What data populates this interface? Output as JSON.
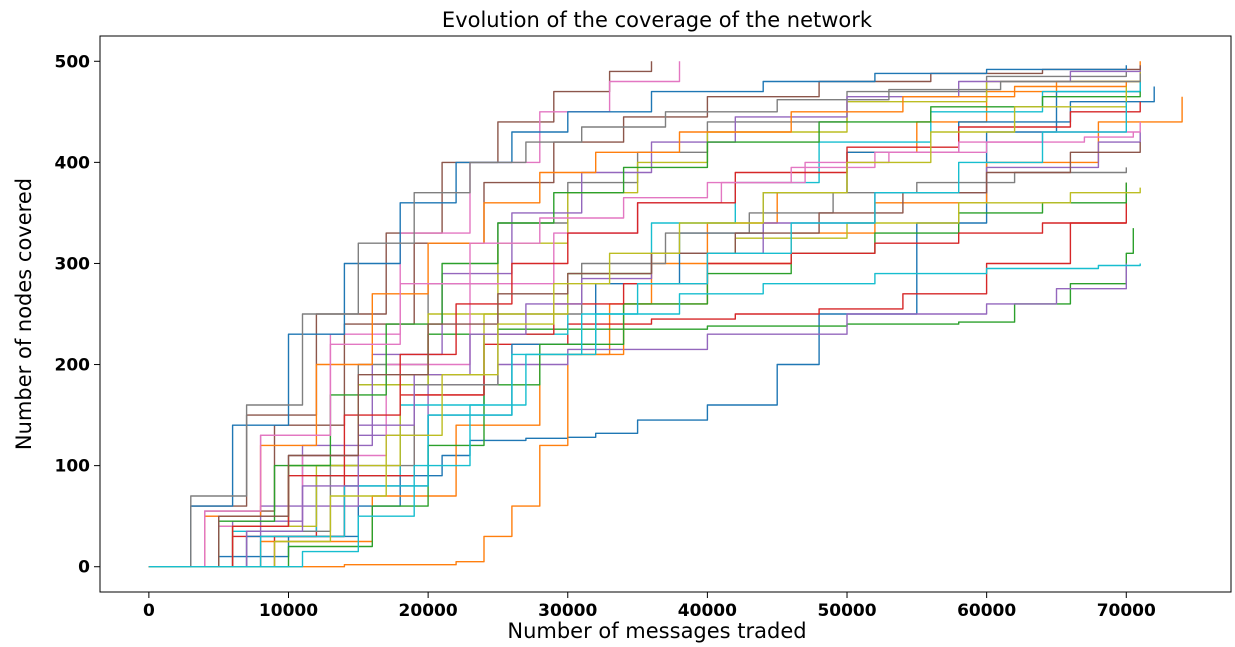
{
  "chart_data": {
    "type": "line",
    "title": "Evolution of the coverage of the network",
    "xlabel": "Number of messages traded",
    "ylabel": "Number of nodes covered",
    "xlim": [
      -3500,
      77500
    ],
    "ylim": [
      -25,
      525
    ],
    "x_ticks": [
      0,
      10000,
      20000,
      30000,
      40000,
      50000,
      60000,
      70000
    ],
    "y_ticks": [
      0,
      100,
      200,
      300,
      400,
      500
    ],
    "grid": false,
    "legend": "none",
    "colors": [
      "#1f77b4",
      "#ff7f0e",
      "#2ca02c",
      "#d62728",
      "#9467bd",
      "#8c564b",
      "#e377c2",
      "#7f7f7f",
      "#bcbd22",
      "#17becf"
    ],
    "series": [
      {
        "x": [
          0,
          5000,
          10000,
          15000,
          18000,
          21000,
          23000,
          27000,
          30000,
          32000,
          35000,
          40000,
          45000,
          48000,
          55000,
          60000,
          65000,
          71000
        ],
        "y": [
          0,
          10,
          30,
          60,
          90,
          110,
          125,
          127,
          128,
          132,
          145,
          160,
          200,
          250,
          340,
          430,
          470,
          490
        ]
      },
      {
        "x": [
          0,
          14000,
          20000,
          22000,
          24000,
          26000,
          28000,
          30000,
          33000,
          36000,
          40000,
          45000,
          50000,
          55000,
          60000,
          65000,
          71000
        ],
        "y": [
          0,
          2,
          2,
          5,
          30,
          60,
          120,
          210,
          260,
          300,
          340,
          370,
          410,
          440,
          470,
          480,
          500
        ]
      },
      {
        "x": [
          0,
          5000,
          10000,
          15000,
          20000,
          25000,
          30000,
          40000,
          50000,
          58000,
          62000,
          66000,
          70000,
          70500
        ],
        "y": [
          0,
          40,
          100,
          180,
          230,
          235,
          235,
          238,
          240,
          242,
          260,
          280,
          310,
          335
        ]
      },
      {
        "x": [
          0,
          6000,
          12000,
          18000,
          24000,
          30000,
          36000,
          42000,
          48000,
          54000,
          60000,
          66000,
          70000
        ],
        "y": [
          0,
          30,
          90,
          170,
          220,
          240,
          245,
          250,
          255,
          270,
          300,
          340,
          380
        ]
      },
      {
        "x": [
          0,
          8000,
          15000,
          20000,
          25000,
          30000,
          40000,
          50000,
          60000,
          65000,
          70000
        ],
        "y": [
          0,
          60,
          130,
          180,
          200,
          215,
          230,
          250,
          260,
          275,
          300
        ]
      },
      {
        "x": [
          0,
          3000,
          7000,
          12000,
          17000,
          21000,
          25000,
          29000,
          33000,
          36000
        ],
        "y": [
          0,
          60,
          150,
          250,
          330,
          400,
          440,
          470,
          490,
          500
        ]
      },
      {
        "x": [
          0,
          4000,
          8000,
          13000,
          18000,
          23000,
          28000,
          33000,
          38000
        ],
        "y": [
          0,
          50,
          130,
          230,
          330,
          400,
          450,
          480,
          500
        ]
      },
      {
        "x": [
          0,
          5000,
          10000,
          15000,
          20000,
          25000,
          30000,
          35000,
          40000,
          50000,
          60000,
          70000
        ],
        "y": [
          0,
          50,
          110,
          200,
          280,
          340,
          380,
          410,
          440,
          470,
          485,
          490
        ]
      },
      {
        "x": [
          0,
          5000,
          10000,
          15000,
          20000,
          25000,
          30000,
          35000,
          40000,
          50000,
          60000,
          71000
        ],
        "y": [
          0,
          40,
          100,
          180,
          250,
          320,
          370,
          400,
          430,
          460,
          480,
          495
        ]
      },
      {
        "x": [
          0,
          6000,
          12000,
          18000,
          24000,
          30000,
          36000,
          42000,
          48000,
          56000,
          64000,
          71000
        ],
        "y": [
          0,
          35,
          90,
          160,
          230,
          290,
          340,
          380,
          420,
          450,
          470,
          480
        ]
      },
      {
        "x": [
          0,
          7000,
          14000,
          20000,
          26000,
          32000,
          38000,
          44000,
          50000,
          58000,
          66000,
          72000
        ],
        "y": [
          0,
          30,
          80,
          150,
          220,
          280,
          330,
          370,
          410,
          440,
          460,
          475
        ]
      },
      {
        "x": [
          0,
          8000,
          16000,
          22000,
          28000,
          34000,
          40000,
          46000,
          52000,
          60000,
          68000,
          74000
        ],
        "y": [
          0,
          25,
          70,
          140,
          210,
          260,
          300,
          330,
          360,
          400,
          440,
          465
        ]
      },
      {
        "x": [
          0,
          10000,
          16000,
          20000,
          24000,
          28000,
          34000,
          40000,
          46000,
          52000,
          58000,
          64000,
          70000
        ],
        "y": [
          0,
          20,
          60,
          120,
          180,
          220,
          260,
          290,
          310,
          330,
          350,
          360,
          380
        ]
      },
      {
        "x": [
          0,
          9000,
          14000,
          19000,
          24000,
          29000,
          34000,
          40000,
          46000,
          52000,
          58000,
          64000,
          70000
        ],
        "y": [
          0,
          30,
          90,
          170,
          230,
          260,
          280,
          300,
          310,
          320,
          330,
          340,
          340
        ]
      },
      {
        "x": [
          0,
          6000,
          11000,
          16000,
          21000,
          26000,
          31000,
          36000,
          42000,
          50000,
          58000,
          66000,
          71000
        ],
        "y": [
          0,
          45,
          120,
          210,
          290,
          350,
          390,
          420,
          445,
          465,
          480,
          490,
          495
        ]
      },
      {
        "x": [
          0,
          4000,
          9000,
          14000,
          19000,
          24000,
          29000,
          34000,
          40000,
          48000,
          56000,
          64000,
          71000
        ],
        "y": [
          0,
          55,
          140,
          240,
          320,
          380,
          420,
          445,
          465,
          480,
          488,
          492,
          496
        ]
      },
      {
        "x": [
          0,
          5000,
          11000,
          17000,
          23000,
          29000,
          35000,
          41000,
          47000,
          53000,
          60000,
          67000,
          70500
        ],
        "y": [
          0,
          40,
          110,
          200,
          280,
          330,
          360,
          380,
          400,
          410,
          420,
          425,
          430
        ]
      },
      {
        "x": [
          0,
          7000,
          13000,
          19000,
          25000,
          31000,
          37000,
          43000,
          49000,
          55000,
          62000,
          70000
        ],
        "y": [
          0,
          35,
          100,
          180,
          250,
          300,
          330,
          350,
          370,
          380,
          390,
          395
        ]
      },
      {
        "x": [
          0,
          6000,
          12000,
          18000,
          24000,
          30000,
          36000,
          42000,
          50000,
          58000,
          66000,
          71000
        ],
        "y": [
          0,
          40,
          100,
          190,
          250,
          290,
          310,
          325,
          340,
          360,
          370,
          375
        ]
      },
      {
        "x": [
          0,
          8000,
          14000,
          20000,
          26000,
          32000,
          38000,
          44000,
          52000,
          60000,
          68000,
          71000
        ],
        "y": [
          0,
          30,
          80,
          150,
          210,
          250,
          270,
          280,
          290,
          295,
          298,
          300
        ]
      },
      {
        "x": [
          0,
          3000,
          6000,
          10000,
          14000,
          18000,
          22000,
          26000,
          30000,
          36000,
          44000,
          52000,
          60000,
          70000
        ],
        "y": [
          0,
          60,
          140,
          230,
          300,
          360,
          400,
          430,
          450,
          470,
          480,
          488,
          492,
          496
        ]
      },
      {
        "x": [
          0,
          4000,
          8000,
          12000,
          16000,
          20000,
          24000,
          28000,
          32000,
          38000,
          46000,
          54000,
          62000,
          70000
        ],
        "y": [
          0,
          50,
          120,
          200,
          270,
          320,
          360,
          390,
          410,
          430,
          450,
          465,
          475,
          480
        ]
      },
      {
        "x": [
          0,
          5000,
          9000,
          13000,
          17000,
          21000,
          25000,
          29000,
          34000,
          40000,
          48000,
          56000,
          64000,
          71000
        ],
        "y": [
          0,
          45,
          100,
          170,
          240,
          300,
          340,
          370,
          395,
          420,
          440,
          455,
          465,
          470
        ]
      },
      {
        "x": [
          0,
          6000,
          10000,
          14000,
          18000,
          22000,
          26000,
          30000,
          35000,
          42000,
          50000,
          58000,
          66000,
          71000
        ],
        "y": [
          0,
          40,
          90,
          150,
          210,
          260,
          300,
          330,
          360,
          390,
          415,
          435,
          450,
          460
        ]
      },
      {
        "x": [
          0,
          7000,
          11000,
          15000,
          19000,
          23000,
          27000,
          31000,
          36000,
          44000,
          52000,
          60000,
          68000,
          71000
        ],
        "y": [
          0,
          35,
          80,
          140,
          190,
          230,
          260,
          285,
          310,
          340,
          370,
          395,
          420,
          430
        ]
      },
      {
        "x": [
          0,
          5000,
          10000,
          15000,
          20000,
          25000,
          30000,
          36000,
          42000,
          48000,
          54000,
          60000,
          66000,
          71000
        ],
        "y": [
          0,
          50,
          110,
          190,
          240,
          270,
          290,
          310,
          330,
          350,
          370,
          390,
          410,
          420
        ]
      },
      {
        "x": [
          0,
          4000,
          8000,
          13000,
          18000,
          23000,
          28000,
          34000,
          40000,
          46000,
          52000,
          58000,
          64000,
          71000
        ],
        "y": [
          0,
          55,
          130,
          220,
          280,
          320,
          345,
          365,
          380,
          395,
          410,
          420,
          430,
          440
        ]
      },
      {
        "x": [
          0,
          3000,
          7000,
          11000,
          15000,
          19000,
          23000,
          27000,
          31000,
          37000,
          45000,
          53000,
          61000,
          71000
        ],
        "y": [
          0,
          70,
          160,
          250,
          320,
          370,
          400,
          420,
          435,
          450,
          462,
          472,
          480,
          488
        ]
      },
      {
        "x": [
          0,
          9000,
          13000,
          17000,
          21000,
          25000,
          29000,
          33000,
          38000,
          44000,
          50000,
          56000,
          62000,
          70000
        ],
        "y": [
          0,
          25,
          70,
          130,
          190,
          240,
          280,
          310,
          340,
          370,
          400,
          430,
          455,
          475
        ]
      },
      {
        "x": [
          0,
          11000,
          15000,
          19000,
          23000,
          27000,
          31000,
          35000,
          40000,
          46000,
          52000,
          58000,
          64000,
          70000
        ],
        "y": [
          0,
          15,
          50,
          100,
          160,
          210,
          250,
          280,
          310,
          340,
          370,
          400,
          430,
          460
        ]
      }
    ]
  }
}
